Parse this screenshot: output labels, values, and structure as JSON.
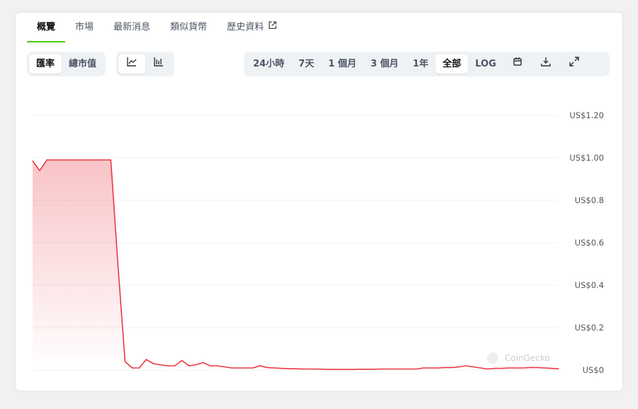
{
  "tabs": [
    {
      "label": "概覽",
      "active": true
    },
    {
      "label": "市場"
    },
    {
      "label": "最新消息"
    },
    {
      "label": "類似貨幣"
    },
    {
      "label": "歷史資料",
      "icon": "external-link-icon"
    }
  ],
  "metric_toggle": {
    "options": [
      "匯率",
      "總市值"
    ],
    "selected": "匯率"
  },
  "chart_type_toggle": {
    "options": [
      "line-chart-icon",
      "candlestick-chart-icon"
    ],
    "selected": "line-chart-icon"
  },
  "range_buttons": {
    "options": [
      "24小時",
      "7天",
      "1 個月",
      "3 個月",
      "1年",
      "全部",
      "LOG"
    ],
    "selected": "全部"
  },
  "tool_icons": [
    "calendar-icon",
    "download-icon",
    "expand-icon"
  ],
  "watermark": "CoinGecko",
  "colors": {
    "line": "#ea3943",
    "accent": "#4bcc00"
  },
  "chart_data": {
    "type": "area",
    "ylabel": "",
    "ylim": [
      0,
      1.2
    ],
    "yticks": [
      0,
      0.2,
      0.4,
      0.6,
      0.8,
      1.0,
      1.2
    ],
    "ytick_labels": [
      "US$0",
      "US$0.2",
      "US$0.4",
      "US$0.6",
      "US$0.8",
      "US$1.00",
      "US$1.20"
    ],
    "grid": true,
    "values": [
      0.985,
      0.94,
      0.99,
      0.99,
      0.99,
      0.99,
      0.99,
      0.99,
      0.99,
      0.99,
      0.99,
      0.99,
      0.5,
      0.04,
      0.01,
      0.01,
      0.05,
      0.03,
      0.025,
      0.02,
      0.02,
      0.045,
      0.02,
      0.025,
      0.035,
      0.02,
      0.02,
      0.015,
      0.01,
      0.01,
      0.01,
      0.01,
      0.02,
      0.012,
      0.01,
      0.008,
      0.007,
      0.006,
      0.005,
      0.005,
      0.005,
      0.004,
      0.003,
      0.003,
      0.003,
      0.003,
      0.004,
      0.004,
      0.004,
      0.005,
      0.005,
      0.005,
      0.005,
      0.005,
      0.005,
      0.01,
      0.01,
      0.01,
      0.012,
      0.012,
      0.015,
      0.02,
      0.015,
      0.01,
      0.005,
      0.008,
      0.008,
      0.01,
      0.01,
      0.01,
      0.012,
      0.012,
      0.01,
      0.008,
      0.006
    ]
  }
}
